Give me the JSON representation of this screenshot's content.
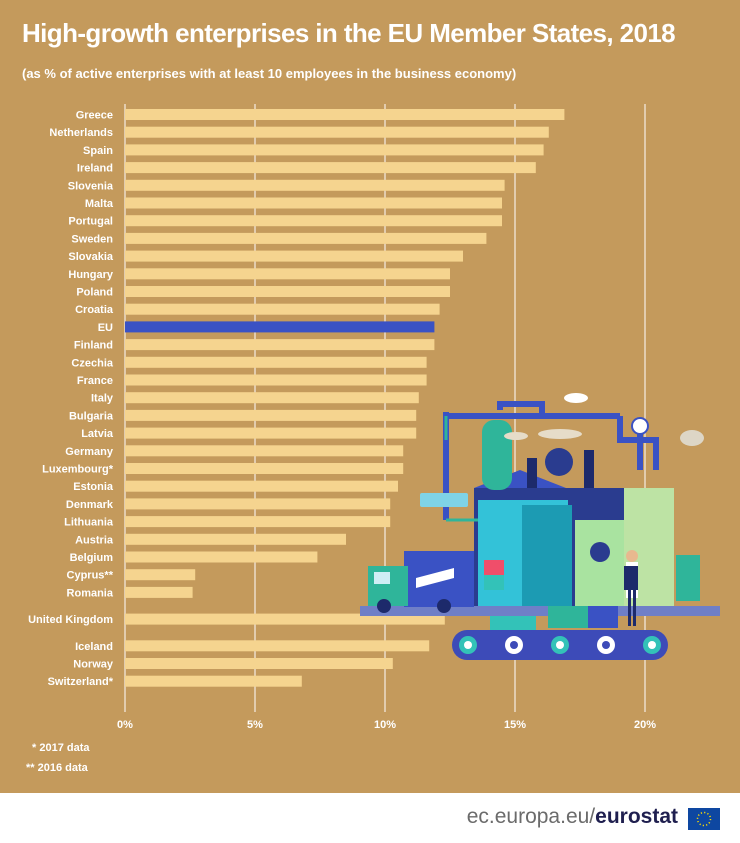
{
  "chart_data": {
    "type": "bar",
    "orientation": "horizontal",
    "title": "High-growth enterprises in the EU Member States, 2018",
    "subtitle": "(as % of active enterprises with at least 10 employees in the business economy)",
    "categories": [
      "Greece",
      "Netherlands",
      "Spain",
      "Ireland",
      "Slovenia",
      "Malta",
      "Portugal",
      "Sweden",
      "Slovakia",
      "Hungary",
      "Poland",
      "Croatia",
      "EU",
      "Finland",
      "Czechia",
      "France",
      "Italy",
      "Bulgaria",
      "Latvia",
      "Germany",
      "Luxembourg*",
      "Estonia",
      "Denmark",
      "Lithuania",
      "Austria",
      "Belgium",
      "Cyprus**",
      "Romania",
      "United Kingdom",
      "Iceland",
      "Norway",
      "Switzerland*"
    ],
    "values": [
      16.9,
      16.3,
      16.1,
      15.8,
      14.6,
      14.5,
      14.5,
      13.9,
      13.0,
      12.5,
      12.5,
      12.1,
      11.9,
      11.9,
      11.6,
      11.6,
      11.3,
      11.2,
      11.2,
      10.7,
      10.7,
      10.5,
      10.2,
      10.2,
      8.5,
      7.4,
      2.7,
      2.6,
      12.3,
      11.7,
      10.3,
      6.8
    ],
    "group_breaks_after": [
      "Romania",
      "United Kingdom"
    ],
    "highlight": "EU",
    "xlim": [
      0,
      23
    ],
    "xticks": [
      0,
      5,
      10,
      15,
      20
    ],
    "xtick_labels": [
      "0%",
      "5%",
      "10%",
      "15%",
      "20%"
    ],
    "grid": true,
    "colors": {
      "bar": "#f5d48f",
      "highlight": "#3a52c4",
      "background": "#c49a5c",
      "grid": "#ffffff"
    }
  },
  "notes": [
    "* 2017 data",
    "** 2016 data"
  ],
  "footer": {
    "domain": "ec.europa.eu/",
    "brand": "eurostat"
  }
}
